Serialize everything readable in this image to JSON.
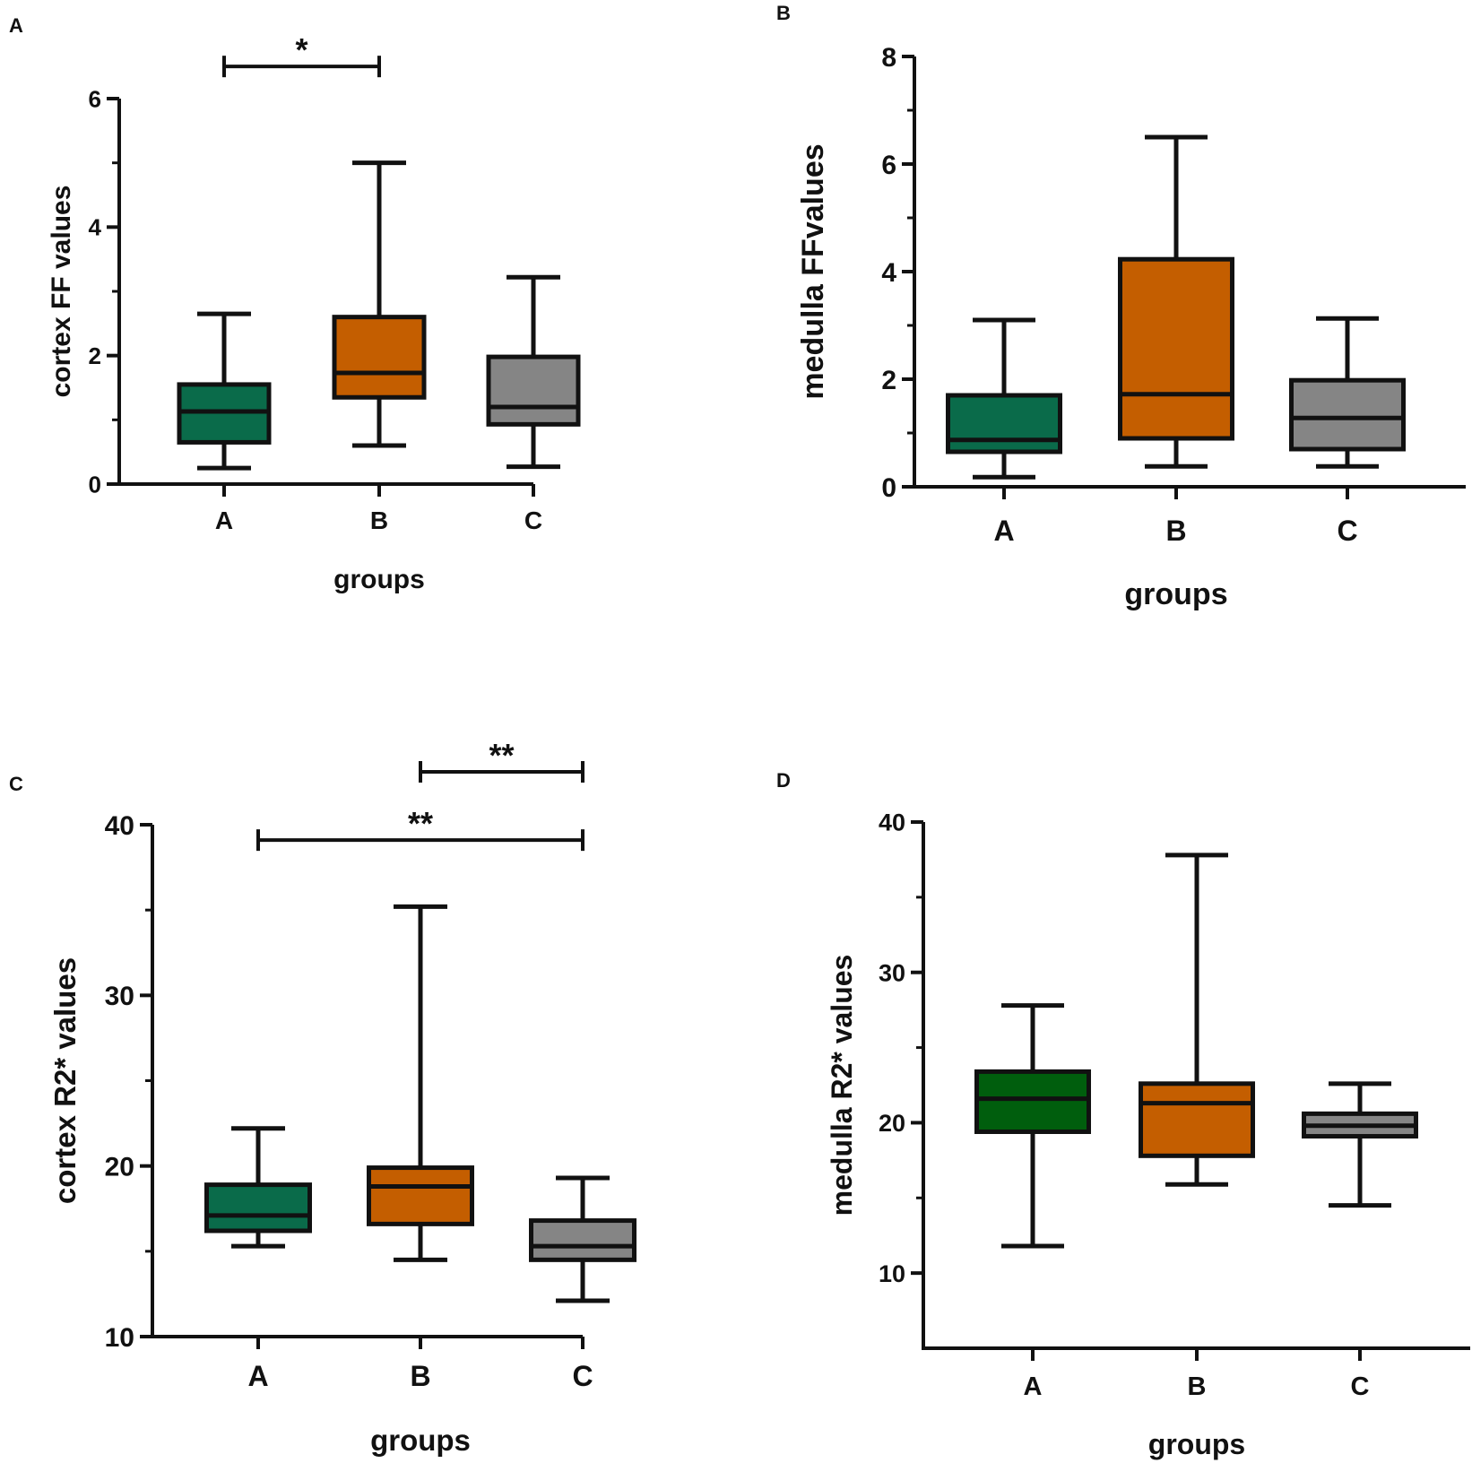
{
  "chart_data": [
    {
      "type": "box",
      "panel": "A",
      "title": "",
      "xlabel": "groups",
      "ylabel": "cortex FF values",
      "ylim": [
        0,
        6
      ],
      "yticks": [
        0,
        2,
        4,
        6
      ],
      "ytick_labels": [
        "0",
        "2",
        "4",
        "6"
      ],
      "minor_ticks": [
        1,
        3,
        5
      ],
      "categories": [
        "A",
        "B",
        "C"
      ],
      "boxes": [
        {
          "group": "A",
          "min": 0.25,
          "q1": 0.65,
          "median": 1.13,
          "q3": 1.55,
          "max": 2.65,
          "color": "#0a6b4a"
        },
        {
          "group": "B",
          "min": 0.6,
          "q1": 1.35,
          "median": 1.73,
          "q3": 2.6,
          "max": 5.0,
          "color": "#c45e00"
        },
        {
          "group": "C",
          "min": 0.27,
          "q1": 0.93,
          "median": 1.2,
          "q3": 1.98,
          "max": 3.22,
          "color": "#858585"
        }
      ],
      "significance": [
        {
          "from": "A",
          "to": "B",
          "label": "*",
          "level": 6.5
        }
      ]
    },
    {
      "type": "box",
      "panel": "B",
      "title": "",
      "xlabel": "groups",
      "ylabel": "medulla FFvalues",
      "ylim": [
        0,
        8
      ],
      "yticks": [
        0,
        2,
        4,
        6,
        8
      ],
      "ytick_labels": [
        "0",
        "2",
        "4",
        "6",
        "8"
      ],
      "minor_ticks": [
        1,
        3,
        5,
        7
      ],
      "categories": [
        "A",
        "B",
        "C"
      ],
      "boxes": [
        {
          "group": "A",
          "min": 0.18,
          "q1": 0.65,
          "median": 0.87,
          "q3": 1.7,
          "max": 3.1,
          "color": "#0a6b4a"
        },
        {
          "group": "B",
          "min": 0.38,
          "q1": 0.9,
          "median": 1.72,
          "q3": 4.23,
          "max": 6.5,
          "color": "#c45e00"
        },
        {
          "group": "C",
          "min": 0.38,
          "q1": 0.7,
          "median": 1.28,
          "q3": 1.98,
          "max": 3.13,
          "color": "#858585"
        }
      ],
      "significance": []
    },
    {
      "type": "box",
      "panel": "C",
      "title": "",
      "xlabel": "groups",
      "ylabel": "cortex R2* values",
      "ylim": [
        10,
        40
      ],
      "yticks": [
        10,
        20,
        30,
        40
      ],
      "ytick_labels": [
        "10",
        "20",
        "30",
        "40"
      ],
      "minor_ticks": [
        15,
        25,
        35
      ],
      "categories": [
        "A",
        "B",
        "C"
      ],
      "boxes": [
        {
          "group": "A",
          "min": 15.3,
          "q1": 16.2,
          "median": 17.1,
          "q3": 18.9,
          "max": 22.2,
          "color": "#0a6b4a"
        },
        {
          "group": "B",
          "min": 14.5,
          "q1": 16.6,
          "median": 18.8,
          "q3": 19.9,
          "max": 35.2,
          "color": "#c45e00"
        },
        {
          "group": "C",
          "min": 12.1,
          "q1": 14.5,
          "median": 15.3,
          "q3": 16.8,
          "max": 19.3,
          "color": "#858585"
        }
      ],
      "significance": [
        {
          "from": "B",
          "to": "C",
          "label": "**",
          "level": 43.1
        },
        {
          "from": "A",
          "to": "C",
          "label": "**",
          "level": 39.1
        }
      ]
    },
    {
      "type": "box",
      "panel": "D",
      "title": "",
      "xlabel": "groups",
      "ylabel": "medulla R2* values",
      "ylim": [
        5,
        40
      ],
      "yticks": [
        10,
        20,
        30,
        40
      ],
      "ytick_labels": [
        "10",
        "20",
        "30",
        "40"
      ],
      "minor_ticks": [
        15,
        25,
        35
      ],
      "categories": [
        "A",
        "B",
        "C"
      ],
      "boxes": [
        {
          "group": "A",
          "min": 11.8,
          "q1": 19.4,
          "median": 21.6,
          "q3": 23.4,
          "max": 27.8,
          "color": "#005e0d"
        },
        {
          "group": "B",
          "min": 15.9,
          "q1": 17.8,
          "median": 21.3,
          "q3": 22.6,
          "max": 37.8,
          "color": "#c45e00"
        },
        {
          "group": "C",
          "min": 14.5,
          "q1": 19.1,
          "median": 19.8,
          "q3": 20.6,
          "max": 22.6,
          "color": "#858585"
        }
      ],
      "significance": []
    }
  ]
}
